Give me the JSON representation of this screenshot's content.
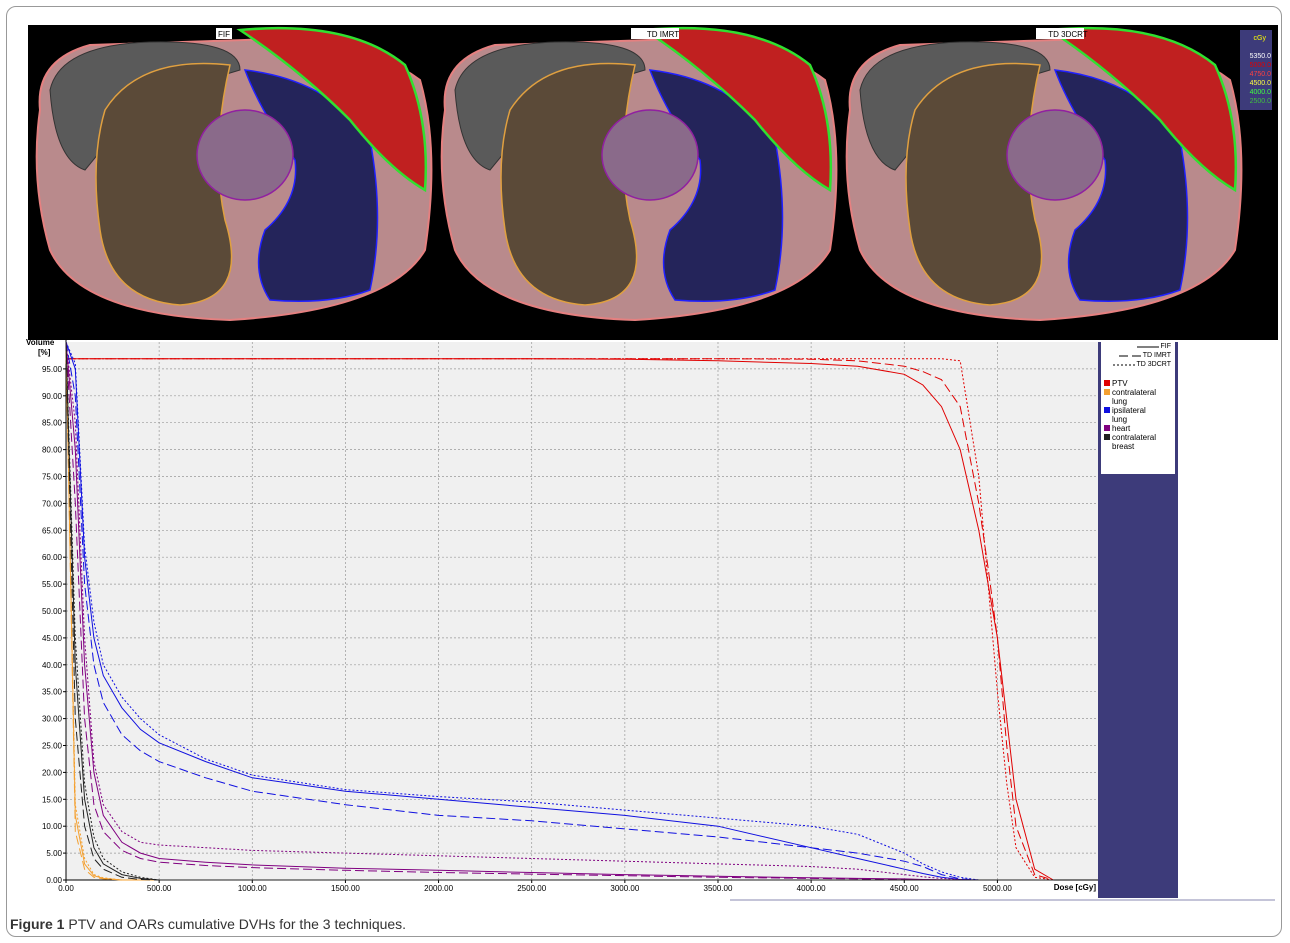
{
  "images": {
    "panels": [
      "FIF",
      "TD IMRT",
      "TD 3DCRT"
    ],
    "dose_legend": {
      "unit": "cGy",
      "levels": [
        {
          "label": "5350.0",
          "color": "#ffffff"
        },
        {
          "label": "5000.0",
          "color": "#e00000"
        },
        {
          "label": "4750.0",
          "color": "#ff4040"
        },
        {
          "label": "4500.0",
          "color": "#ffff40"
        },
        {
          "label": "4000.0",
          "color": "#40ff40"
        },
        {
          "label": "2500.0",
          "color": "#40c040"
        }
      ]
    }
  },
  "chart_data": {
    "type": "line",
    "x_label": "Dose [cGy]",
    "y_label": [
      "Volume",
      "[%]"
    ],
    "x": [
      0,
      50,
      100,
      150,
      200,
      300,
      400,
      500,
      750,
      1000,
      1500,
      2000,
      2500,
      3000,
      3500,
      4000,
      4250,
      4500,
      4600,
      4700,
      4800,
      4900,
      4950,
      5000,
      5050,
      5100,
      5200,
      5300
    ],
    "xlim": [
      0,
      5540
    ],
    "ylim": [
      0,
      100
    ],
    "grid": true,
    "xticks": [
      {
        "value": 0,
        "label": "0.00"
      },
      {
        "value": 500,
        "label": "500.00"
      },
      {
        "value": 1000,
        "label": "1000.00"
      },
      {
        "value": 1500,
        "label": "1500.00"
      },
      {
        "value": 2000,
        "label": "2000.00"
      },
      {
        "value": 2500,
        "label": "2500.00"
      },
      {
        "value": 3000,
        "label": "3000.00"
      },
      {
        "value": 3500,
        "label": "3500.00"
      },
      {
        "value": 4000,
        "label": "4000.00"
      },
      {
        "value": 4500,
        "label": "4500.00"
      },
      {
        "value": 5000,
        "label": "5000.00"
      }
    ],
    "yticks": [
      {
        "value": 0,
        "label": "0.00"
      },
      {
        "value": 5,
        "label": "5.00"
      },
      {
        "value": 10,
        "label": "10.00"
      },
      {
        "value": 15,
        "label": "15.00"
      },
      {
        "value": 20,
        "label": "20.00"
      },
      {
        "value": 25,
        "label": "25.00"
      },
      {
        "value": 30,
        "label": "30.00"
      },
      {
        "value": 35,
        "label": "35.00"
      },
      {
        "value": 40,
        "label": "40.00"
      },
      {
        "value": 45,
        "label": "45.00"
      },
      {
        "value": 50,
        "label": "50.00"
      },
      {
        "value": 55,
        "label": "55.00"
      },
      {
        "value": 60,
        "label": "60.00"
      },
      {
        "value": 65,
        "label": "65.00"
      },
      {
        "value": 70,
        "label": "70.00"
      },
      {
        "value": 75,
        "label": "75.00"
      },
      {
        "value": 80,
        "label": "80.00"
      },
      {
        "value": 85,
        "label": "85.00"
      },
      {
        "value": 90,
        "label": "90.00"
      },
      {
        "value": 95,
        "label": "95.00"
      }
    ],
    "techniques": [
      {
        "name": "FIF",
        "dash": "none"
      },
      {
        "name": "TD IMRT",
        "dash": "9,4"
      },
      {
        "name": "TD 3DCRT",
        "dash": "2,2"
      }
    ],
    "structures": [
      {
        "name": "PTV",
        "color": "#e00000"
      },
      {
        "name": "contralateral lung",
        "color": "#f4a030"
      },
      {
        "name": "ipsilateral lung",
        "color": "#1010e0"
      },
      {
        "name": "heart",
        "color": "#800080"
      },
      {
        "name": "contralateral breast",
        "color": "#202020"
      }
    ],
    "series": [
      {
        "structure": "PTV",
        "technique": "FIF",
        "values": [
          96.9,
          96.9,
          96.9,
          96.9,
          96.9,
          96.9,
          96.9,
          96.9,
          96.9,
          96.9,
          96.9,
          96.9,
          96.9,
          96.8,
          96.5,
          96,
          95.5,
          94,
          92,
          88,
          80,
          65,
          55,
          45,
          30,
          15,
          2,
          0
        ]
      },
      {
        "structure": "PTV",
        "technique": "TD IMRT",
        "values": [
          96.9,
          96.9,
          96.9,
          96.9,
          96.9,
          96.9,
          96.9,
          96.9,
          96.9,
          96.9,
          96.9,
          96.9,
          96.9,
          96.9,
          96.9,
          96.8,
          96.5,
          95.5,
          94.5,
          93,
          88,
          70,
          58,
          45,
          25,
          10,
          1,
          0
        ]
      },
      {
        "structure": "PTV",
        "technique": "TD 3DCRT",
        "values": [
          96.9,
          96.9,
          96.9,
          96.9,
          96.9,
          96.9,
          96.9,
          96.9,
          96.9,
          96.9,
          96.9,
          96.9,
          96.9,
          96.9,
          96.9,
          96.9,
          96.9,
          96.9,
          96.9,
          96.9,
          96.5,
          75,
          55,
          35,
          18,
          6,
          0.5,
          0
        ]
      },
      {
        "structure": "contralateral lung",
        "technique": "FIF",
        "values": [
          100,
          12,
          3,
          0.8,
          0.3,
          0,
          0,
          0,
          0,
          0,
          0,
          0,
          0,
          0,
          0,
          0,
          0,
          0,
          0,
          0,
          0,
          0,
          0,
          0,
          0,
          0,
          0,
          0
        ]
      },
      {
        "structure": "contralateral lung",
        "technique": "TD IMRT",
        "values": [
          100,
          9,
          2,
          0.5,
          0.2,
          0,
          0,
          0,
          0,
          0,
          0,
          0,
          0,
          0,
          0,
          0,
          0,
          0,
          0,
          0,
          0,
          0,
          0,
          0,
          0,
          0,
          0,
          0
        ]
      },
      {
        "structure": "contralateral lung",
        "technique": "TD 3DCRT",
        "values": [
          100,
          14,
          4,
          1,
          0.4,
          0,
          0,
          0,
          0,
          0,
          0,
          0,
          0,
          0,
          0,
          0,
          0,
          0,
          0,
          0,
          0,
          0,
          0,
          0,
          0,
          0,
          0,
          0
        ]
      },
      {
        "structure": "ipsilateral lung",
        "technique": "FIF",
        "values": [
          100,
          95,
          60,
          45,
          38,
          32,
          28,
          25.5,
          22,
          19,
          16.5,
          15,
          13.5,
          12,
          10,
          6,
          4,
          2,
          1.2,
          0.5,
          0.1,
          0,
          0,
          0,
          0,
          0,
          0,
          0
        ]
      },
      {
        "structure": "ipsilateral lung",
        "technique": "TD IMRT",
        "values": [
          100,
          90,
          55,
          40,
          33,
          27,
          24,
          22,
          19,
          16.5,
          14,
          12,
          11,
          9.5,
          8,
          6,
          5,
          3.5,
          2.5,
          1,
          0.2,
          0,
          0,
          0,
          0,
          0,
          0,
          0
        ]
      },
      {
        "structure": "ipsilateral lung",
        "technique": "TD 3DCRT",
        "values": [
          100,
          96,
          62,
          48,
          40,
          34,
          30,
          27,
          22.5,
          19.5,
          16.8,
          15.5,
          14.5,
          13,
          11.5,
          10,
          8.5,
          5,
          3,
          1.5,
          0.5,
          0,
          0,
          0,
          0,
          0,
          0,
          0
        ]
      },
      {
        "structure": "heart",
        "technique": "FIF",
        "values": [
          100,
          80,
          40,
          20,
          12,
          7,
          5,
          4,
          3.3,
          2.8,
          2.2,
          1.8,
          1.4,
          1,
          0.7,
          0.4,
          0.3,
          0.2,
          0.1,
          0.05,
          0,
          0,
          0,
          0,
          0,
          0,
          0,
          0
        ]
      },
      {
        "structure": "heart",
        "technique": "TD IMRT",
        "values": [
          100,
          70,
          30,
          14,
          9,
          5.5,
          4,
          3.3,
          2.7,
          2.3,
          1.8,
          1.4,
          1.1,
          0.8,
          0.5,
          0.3,
          0.2,
          0.1,
          0.05,
          0,
          0,
          0,
          0,
          0,
          0,
          0,
          0,
          0
        ]
      },
      {
        "structure": "heart",
        "technique": "TD 3DCRT",
        "values": [
          100,
          85,
          45,
          22,
          14,
          9,
          7,
          6.5,
          6,
          5.5,
          5,
          4.5,
          4,
          3.5,
          3,
          2.5,
          2,
          1,
          0.6,
          0.3,
          0.1,
          0,
          0,
          0,
          0,
          0,
          0,
          0
        ]
      },
      {
        "structure": "contralateral breast",
        "technique": "FIF",
        "values": [
          100,
          40,
          15,
          6,
          3,
          1,
          0.3,
          0,
          0,
          0,
          0,
          0,
          0,
          0,
          0,
          0,
          0,
          0,
          0,
          0,
          0,
          0,
          0,
          0,
          0,
          0,
          0,
          0
        ]
      },
      {
        "structure": "contralateral breast",
        "technique": "TD IMRT",
        "values": [
          100,
          30,
          10,
          4,
          2,
          0.5,
          0.1,
          0,
          0,
          0,
          0,
          0,
          0,
          0,
          0,
          0,
          0,
          0,
          0,
          0,
          0,
          0,
          0,
          0,
          0,
          0,
          0,
          0
        ]
      },
      {
        "structure": "contralateral breast",
        "technique": "TD 3DCRT",
        "values": [
          100,
          45,
          18,
          8,
          4,
          1.5,
          0.5,
          0,
          0,
          0,
          0,
          0,
          0,
          0,
          0,
          0,
          0,
          0,
          0,
          0,
          0,
          0,
          0,
          0,
          0,
          0,
          0,
          0
        ]
      }
    ]
  },
  "caption": {
    "label": "Figure 1",
    "text": "PTV and OARs cumulative DVHs for the 3 techniques."
  }
}
